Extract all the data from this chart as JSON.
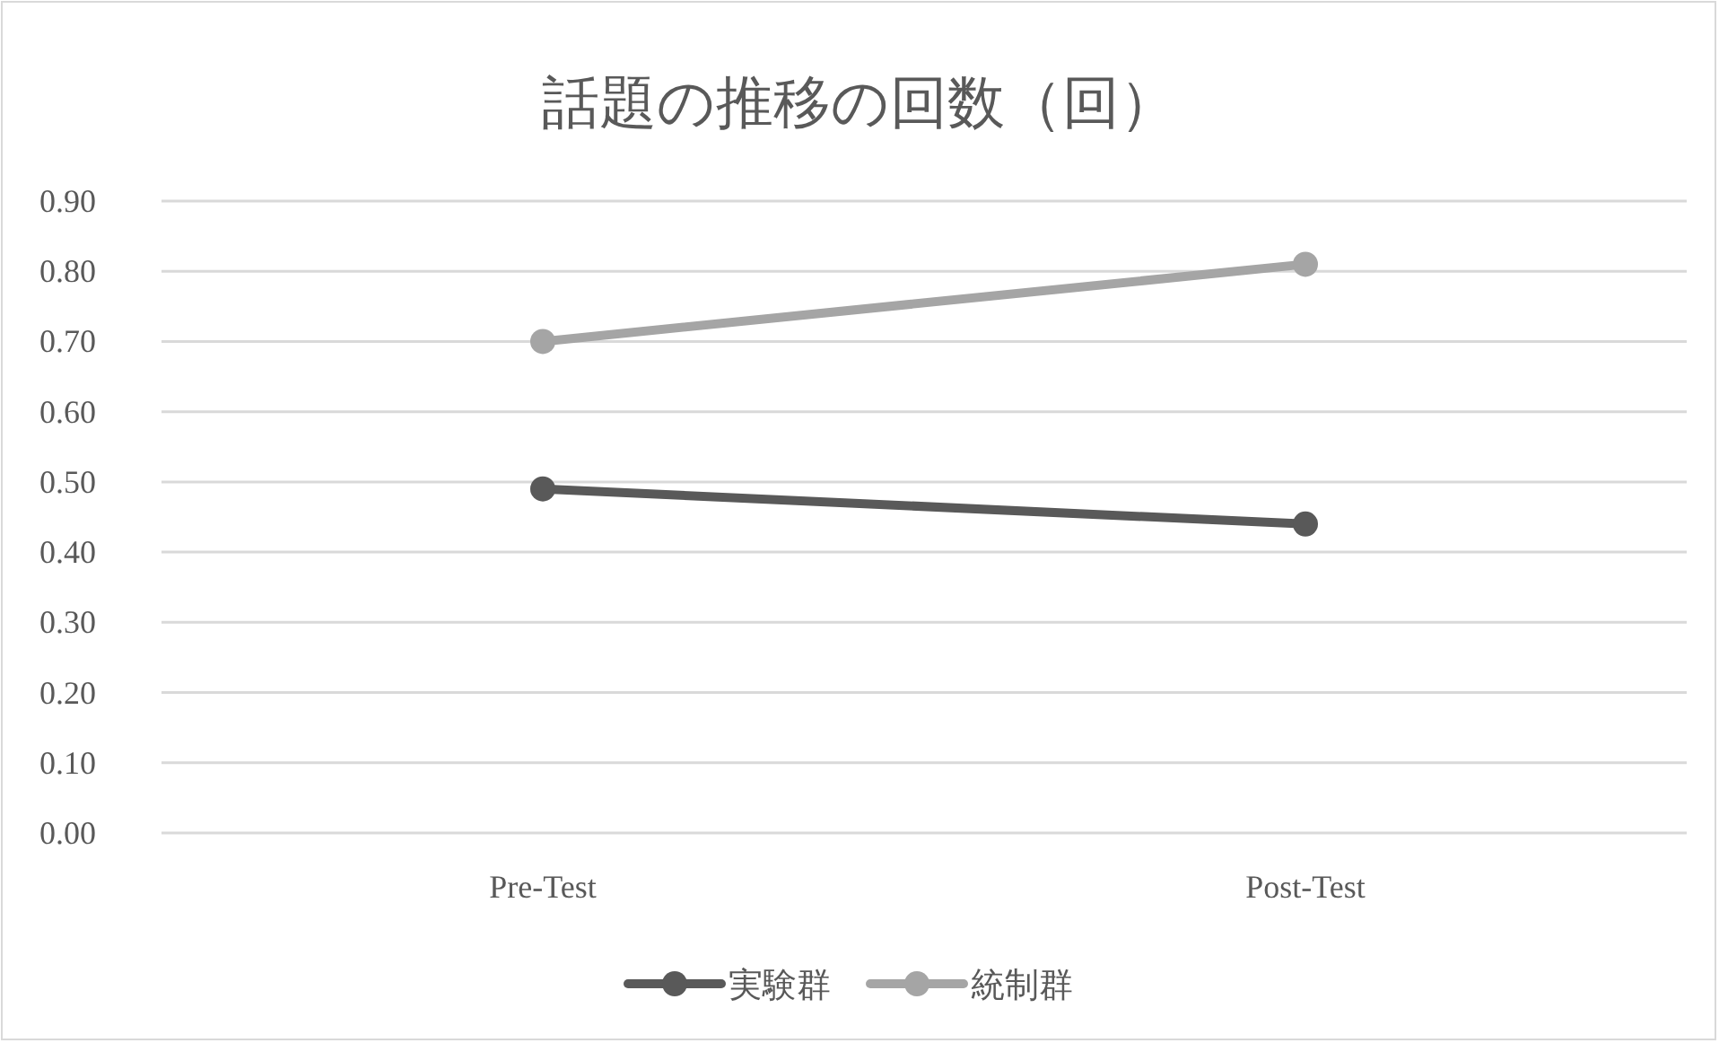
{
  "chart_data": {
    "type": "line",
    "title": "話題の推移の回数（回）",
    "categories": [
      "Pre-Test",
      "Post-Test"
    ],
    "series": [
      {
        "name": "実験群",
        "color": "#595959",
        "values": [
          0.49,
          0.44
        ]
      },
      {
        "name": "統制群",
        "color": "#a5a5a5",
        "values": [
          0.7,
          0.81
        ]
      }
    ],
    "ylim": [
      0,
      0.9
    ],
    "yticks": [
      {
        "value": 0,
        "label": "0.00"
      },
      {
        "value": 0.1,
        "label": "0.10"
      },
      {
        "value": 0.2,
        "label": "0.20"
      },
      {
        "value": 0.3,
        "label": "0.30"
      },
      {
        "value": 0.4,
        "label": "0.40"
      },
      {
        "value": 0.5,
        "label": "0.50"
      },
      {
        "value": 0.6,
        "label": "0.60"
      },
      {
        "value": 0.7,
        "label": "0.70"
      },
      {
        "value": 0.8,
        "label": "0.80"
      },
      {
        "value": 0.9,
        "label": "0.90"
      }
    ],
    "grid": "y",
    "legend": "bottom",
    "marker": "circle",
    "line_style": "solid"
  }
}
